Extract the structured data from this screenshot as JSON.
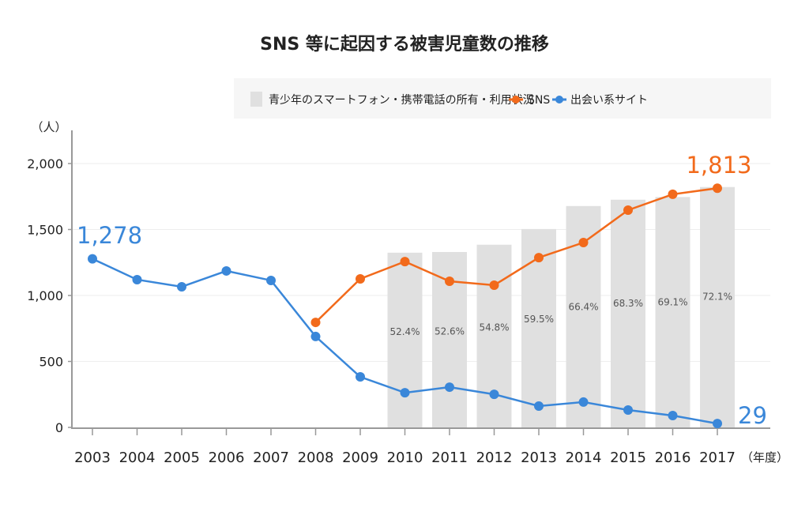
{
  "chart_data": {
    "type": "bar+line",
    "title": "SNS 等に起因する被害児童数の推移",
    "ylabel": "（人）",
    "xlabel": "（年度）",
    "ylim": [
      0,
      2000
    ],
    "yticks": [
      "0",
      "500",
      "1,000",
      "1,500",
      "2,000"
    ],
    "ytick_values": [
      0,
      500,
      1000,
      1500,
      2000
    ],
    "grid": true,
    "legend_position": "top-right",
    "categories": [
      "2003",
      "2004",
      "2005",
      "2006",
      "2007",
      "2008",
      "2009",
      "2010",
      "2011",
      "2012",
      "2013",
      "2014",
      "2015",
      "2016",
      "2017"
    ],
    "bars": {
      "name": "青少年のスマートフォン・携帯電話の所有・利用状況",
      "categories": [
        "2010",
        "2011",
        "2012",
        "2013",
        "2014",
        "2015",
        "2016",
        "2017"
      ],
      "values": [
        52.4,
        52.6,
        54.8,
        59.5,
        66.4,
        68.3,
        69.1,
        72.1
      ],
      "labels": [
        "52.4%",
        "52.6%",
        "54.8%",
        "59.5%",
        "66.4%",
        "68.3%",
        "69.1%",
        "72.1%"
      ],
      "color": "#e0e0e0"
    },
    "series": [
      {
        "name": "SNS",
        "color": "#f26a1b",
        "values": [
          null,
          null,
          null,
          null,
          null,
          796,
          1126,
          1257,
          1108,
          1078,
          1287,
          1401,
          1647,
          1767,
          1813
        ],
        "annotation": {
          "category": "2017",
          "text": "1,813"
        }
      },
      {
        "name": "出会い系サイト",
        "color": "#3a87d9",
        "values": [
          1278,
          1120,
          1066,
          1186,
          1114,
          689,
          383,
          263,
          305,
          251,
          162,
          192,
          132,
          90,
          29
        ],
        "annotation_start": {
          "category": "2003",
          "text": "1,278"
        },
        "annotation_end": {
          "category": "2017",
          "text": "29"
        }
      }
    ]
  }
}
